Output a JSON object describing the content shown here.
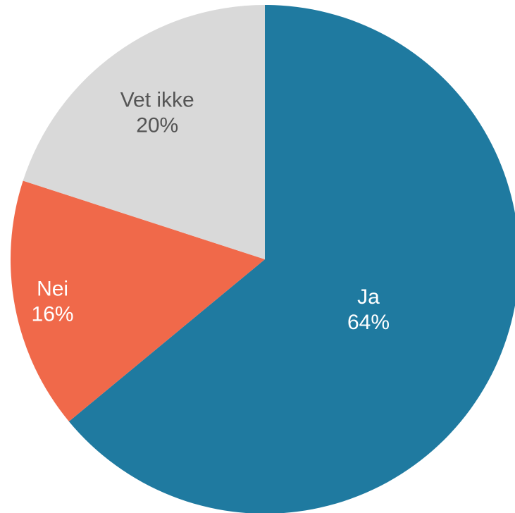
{
  "chart_data": {
    "type": "pie",
    "title": "",
    "start_angle_deg": 0,
    "direction": "clockwise",
    "slices": [
      {
        "label": "Ja",
        "value": 64,
        "value_label": "64%",
        "color": "#1f7aa0",
        "text_color": "#ffffff"
      },
      {
        "label": "Nei",
        "value": 16,
        "value_label": "16%",
        "color": "#f0694a",
        "text_color": "#ffffff"
      },
      {
        "label": "Vet ikke",
        "value": 20,
        "value_label": "20%",
        "color": "#d9d9d9",
        "text_color": "#555555"
      }
    ]
  }
}
